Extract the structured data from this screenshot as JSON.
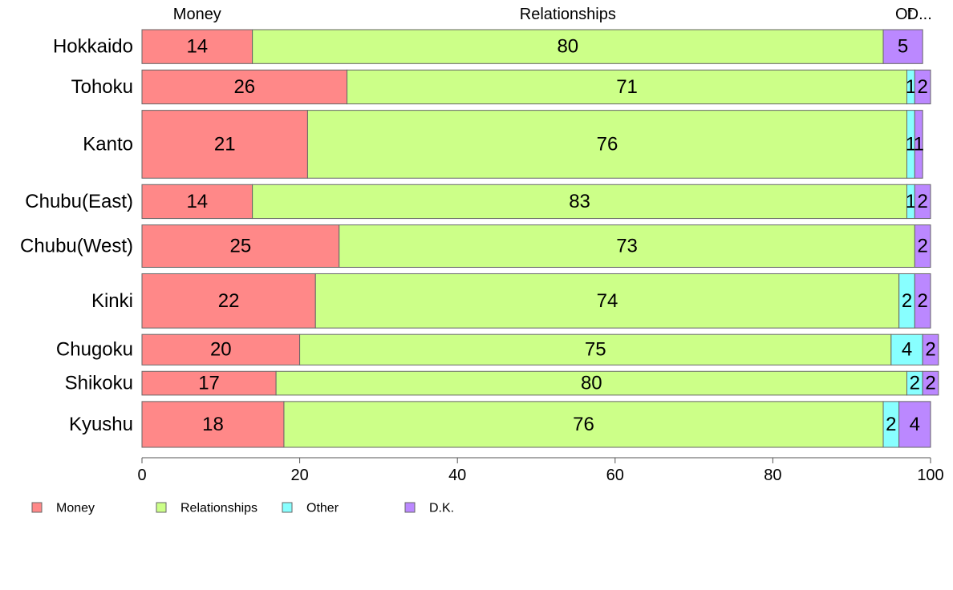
{
  "chart_data": {
    "type": "bar",
    "orientation": "horizontal",
    "stacked": "100%",
    "categories": [
      "Hokkaido",
      "Tohoku",
      "Kanto",
      "Chubu(East)",
      "Chubu(West)",
      "Kinki",
      "Chugoku",
      "Shikoku",
      "Kyushu"
    ],
    "relative_widths": [
      2,
      2,
      4,
      2,
      2.5,
      3.2,
      1.8,
      1.4,
      2.7
    ],
    "series": [
      {
        "name": "Money",
        "color": "#ff8888",
        "values": [
          14,
          26,
          21,
          14,
          25,
          22,
          20,
          17,
          18
        ]
      },
      {
        "name": "Relationships",
        "color": "#ccff88",
        "values": [
          80,
          71,
          76,
          83,
          73,
          74,
          75,
          80,
          76
        ]
      },
      {
        "name": "Other",
        "color": "#88ffff",
        "values": [
          0,
          1,
          1,
          1,
          0,
          2,
          4,
          2,
          2
        ]
      },
      {
        "name": "D.K.",
        "color": "#bb88ff",
        "values": [
          5,
          2,
          1,
          2,
          2,
          2,
          2,
          2,
          4
        ]
      }
    ],
    "top_labels": [
      "Money",
      "Relationships",
      "Ot",
      "D..."
    ],
    "xticks": [
      0,
      20,
      40,
      60,
      80,
      100
    ],
    "xlim": [
      0,
      100
    ],
    "legend_position": "bottom",
    "grid": false
  }
}
